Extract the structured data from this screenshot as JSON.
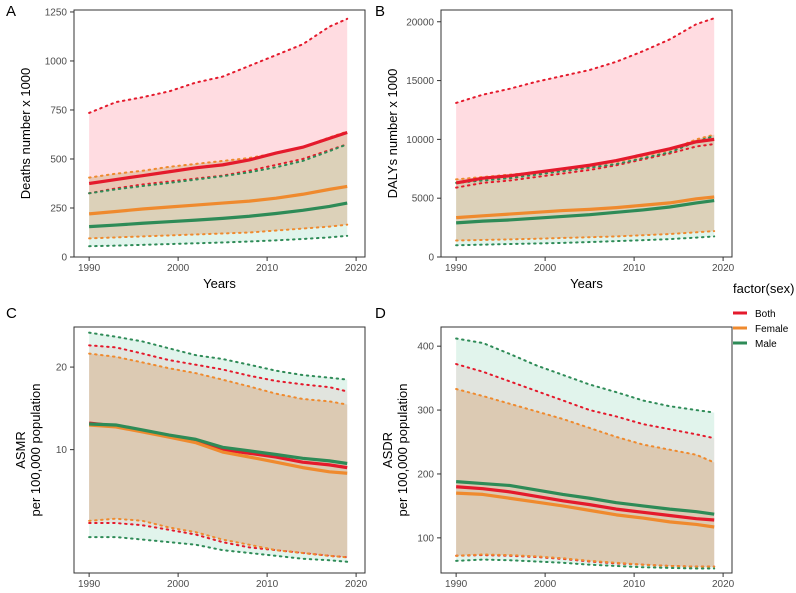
{
  "legend": {
    "title": "factor(sex)",
    "entries": [
      {
        "name": "Both",
        "color": "#e41a2c"
      },
      {
        "name": "Female",
        "color": "#ef8a2e"
      },
      {
        "name": "Male",
        "color": "#2e8b57"
      }
    ]
  },
  "colors": {
    "Both": "#e41a2c",
    "Female": "#ef8a2e",
    "Male": "#2e8b57",
    "bothBand": "#ffc0c8",
    "femaleBand": "#d9b48f",
    "maleBand": "#c8ebdc"
  },
  "chart_data": [
    {
      "panel": "A",
      "type": "line",
      "xlabel": "Years",
      "ylabel": [
        "Deaths number x 1000"
      ],
      "xlim": [
        1988.3,
        2021
      ],
      "ylim": [
        0,
        1260
      ],
      "xticks": [
        1990,
        2000,
        2010,
        2020
      ],
      "yticks": [
        0,
        250,
        500,
        750,
        1000,
        1250
      ],
      "x": [
        1990,
        1993,
        1996,
        1999,
        2002,
        2005,
        2008,
        2011,
        2014,
        2017,
        2019
      ],
      "series": [
        {
          "name": "Both",
          "values": [
            375,
            395,
            415,
            435,
            455,
            470,
            495,
            530,
            560,
            605,
            635
          ],
          "lower": [
            325,
            350,
            370,
            385,
            400,
            415,
            440,
            470,
            500,
            545,
            575
          ],
          "upper": [
            735,
            790,
            815,
            845,
            890,
            920,
            975,
            1030,
            1085,
            1175,
            1215
          ]
        },
        {
          "name": "Female",
          "values": [
            220,
            232,
            245,
            255,
            265,
            275,
            285,
            300,
            320,
            345,
            360
          ],
          "lower": [
            95,
            100,
            105,
            110,
            115,
            120,
            125,
            135,
            145,
            155,
            165
          ],
          "upper": [
            405,
            425,
            440,
            460,
            475,
            490,
            505,
            530,
            560,
            610,
            640
          ]
        },
        {
          "name": "Male",
          "values": [
            155,
            163,
            172,
            180,
            188,
            197,
            208,
            222,
            238,
            258,
            275
          ],
          "lower": [
            55,
            58,
            62,
            66,
            70,
            74,
            79,
            85,
            92,
            100,
            108
          ],
          "upper": [
            325,
            345,
            362,
            378,
            395,
            412,
            432,
            458,
            490,
            540,
            575
          ]
        }
      ]
    },
    {
      "panel": "B",
      "type": "line",
      "xlabel": "Years",
      "ylabel": [
        "DALYs number x 1000"
      ],
      "xlim": [
        1988.3,
        2021
      ],
      "ylim": [
        0,
        21000
      ],
      "xticks": [
        1990,
        2000,
        2010,
        2020
      ],
      "yticks": [
        0,
        5000,
        10000,
        15000,
        20000
      ],
      "x": [
        1990,
        1993,
        1996,
        1999,
        2002,
        2005,
        2008,
        2011,
        2014,
        2017,
        2019
      ],
      "series": [
        {
          "name": "Both",
          "values": [
            6300,
            6700,
            6900,
            7200,
            7500,
            7800,
            8200,
            8700,
            9200,
            9800,
            10000
          ],
          "lower": [
            5900,
            6300,
            6500,
            6800,
            7100,
            7400,
            7800,
            8300,
            8800,
            9400,
            9600
          ],
          "upper": [
            13100,
            13800,
            14300,
            14900,
            15400,
            15900,
            16600,
            17500,
            18500,
            19800,
            20300
          ]
        },
        {
          "name": "Female",
          "values": [
            3350,
            3500,
            3650,
            3800,
            3950,
            4050,
            4200,
            4400,
            4600,
            4950,
            5100
          ],
          "lower": [
            1400,
            1450,
            1500,
            1550,
            1620,
            1680,
            1750,
            1850,
            1950,
            2100,
            2200
          ],
          "upper": [
            6600,
            6800,
            7000,
            7200,
            7500,
            7800,
            8100,
            8600,
            9100,
            10000,
            10400
          ]
        },
        {
          "name": "Male",
          "values": [
            2900,
            3050,
            3150,
            3300,
            3450,
            3600,
            3800,
            4000,
            4250,
            4600,
            4800
          ],
          "lower": [
            1000,
            1050,
            1100,
            1150,
            1200,
            1270,
            1350,
            1430,
            1520,
            1650,
            1750
          ],
          "upper": [
            6300,
            6500,
            6700,
            7000,
            7300,
            7600,
            7900,
            8400,
            8900,
            9800,
            10300
          ]
        }
      ]
    },
    {
      "panel": "C",
      "type": "line",
      "xlabel": "Years",
      "ylabel": [
        "ASMR",
        "per 100,000 population"
      ],
      "ylog": true,
      "xlim": [
        1988.3,
        2021
      ],
      "ylim": [
        3.55,
        28
      ],
      "xticks": [
        1990,
        2000,
        2010,
        2020
      ],
      "yticks": [
        10,
        20
      ],
      "x": [
        1990,
        1993,
        1996,
        1999,
        2002,
        2005,
        2008,
        2011,
        2014,
        2017,
        2019
      ],
      "series": [
        {
          "name": "Both",
          "values": [
            12.5,
            12.2,
            11.7,
            11.2,
            10.8,
            10.0,
            9.7,
            9.4,
            9.0,
            8.8,
            8.6
          ],
          "lower": [
            5.4,
            5.4,
            5.3,
            5.1,
            4.9,
            4.6,
            4.4,
            4.3,
            4.2,
            4.1,
            4.05
          ],
          "upper": [
            24.0,
            23.6,
            22.4,
            21.2,
            20.4,
            19.6,
            18.6,
            17.8,
            17.3,
            16.9,
            16.3
          ]
        },
        {
          "name": "Female",
          "values": [
            12.3,
            12.1,
            11.6,
            11.1,
            10.6,
            9.8,
            9.4,
            9.0,
            8.6,
            8.3,
            8.2
          ],
          "lower": [
            5.5,
            5.6,
            5.5,
            5.2,
            5.0,
            4.7,
            4.5,
            4.3,
            4.2,
            4.1,
            4.05
          ],
          "upper": [
            22.4,
            21.8,
            20.8,
            19.8,
            19.0,
            18.0,
            17.0,
            16.0,
            15.3,
            15.0,
            14.6
          ]
        },
        {
          "name": "Male",
          "values": [
            12.4,
            12.3,
            11.8,
            11.3,
            10.9,
            10.2,
            9.9,
            9.6,
            9.3,
            9.1,
            8.9
          ],
          "lower": [
            4.8,
            4.8,
            4.7,
            4.6,
            4.5,
            4.3,
            4.2,
            4.1,
            4.0,
            3.95,
            3.9
          ],
          "upper": [
            26.7,
            25.8,
            24.8,
            23.4,
            22.1,
            21.4,
            20.4,
            19.4,
            18.7,
            18.3,
            18.0
          ]
        }
      ]
    },
    {
      "panel": "D",
      "type": "line",
      "xlabel": "Years",
      "ylabel": [
        "ASDR",
        "per 100,000 population"
      ],
      "xlim": [
        1988.3,
        2021
      ],
      "ylim": [
        45,
        430
      ],
      "xticks": [
        1990,
        2000,
        2010,
        2020
      ],
      "yticks": [
        100,
        200,
        300,
        400
      ],
      "x": [
        1990,
        1993,
        1996,
        1999,
        2002,
        2005,
        2008,
        2011,
        2014,
        2017,
        2019
      ],
      "series": [
        {
          "name": "Both",
          "values": [
            180,
            177,
            172,
            165,
            158,
            152,
            145,
            140,
            135,
            130,
            128
          ],
          "lower": [
            72,
            73,
            72,
            70,
            67,
            63,
            60,
            58,
            56,
            55,
            55
          ],
          "upper": [
            372,
            360,
            345,
            330,
            315,
            300,
            290,
            278,
            270,
            262,
            256
          ]
        },
        {
          "name": "Female",
          "values": [
            170,
            168,
            162,
            156,
            150,
            143,
            136,
            131,
            125,
            121,
            117
          ],
          "lower": [
            72,
            74,
            73,
            71,
            68,
            64,
            61,
            58,
            56,
            55,
            55
          ],
          "upper": [
            333,
            322,
            310,
            298,
            286,
            272,
            258,
            246,
            238,
            230,
            218
          ]
        },
        {
          "name": "Male",
          "values": [
            188,
            185,
            182,
            175,
            168,
            162,
            155,
            150,
            145,
            141,
            137
          ],
          "lower": [
            64,
            66,
            65,
            63,
            61,
            58,
            56,
            54,
            53,
            52,
            52
          ],
          "upper": [
            412,
            405,
            388,
            370,
            355,
            340,
            328,
            315,
            306,
            300,
            296
          ]
        }
      ]
    }
  ]
}
